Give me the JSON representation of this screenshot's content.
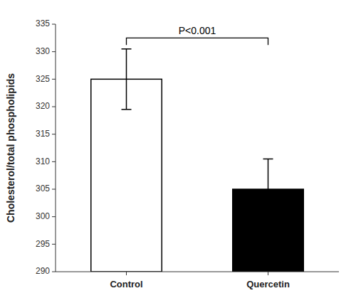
{
  "chart_data": {
    "type": "bar",
    "categories": [
      "Control",
      "Quercetin"
    ],
    "values": [
      325.0,
      305.0
    ],
    "errors": [
      5.5,
      5.5
    ],
    "colors": [
      "#ffffff",
      "#000000"
    ],
    "ylabel": "Cholesterol/total phospholipids",
    "ylim": [
      290,
      335
    ],
    "yticks": [
      290,
      295,
      300,
      305,
      310,
      315,
      320,
      325,
      330,
      335
    ],
    "annotations": [
      {
        "text": "P<0.001",
        "y": 332.5
      }
    ],
    "grid": false
  }
}
